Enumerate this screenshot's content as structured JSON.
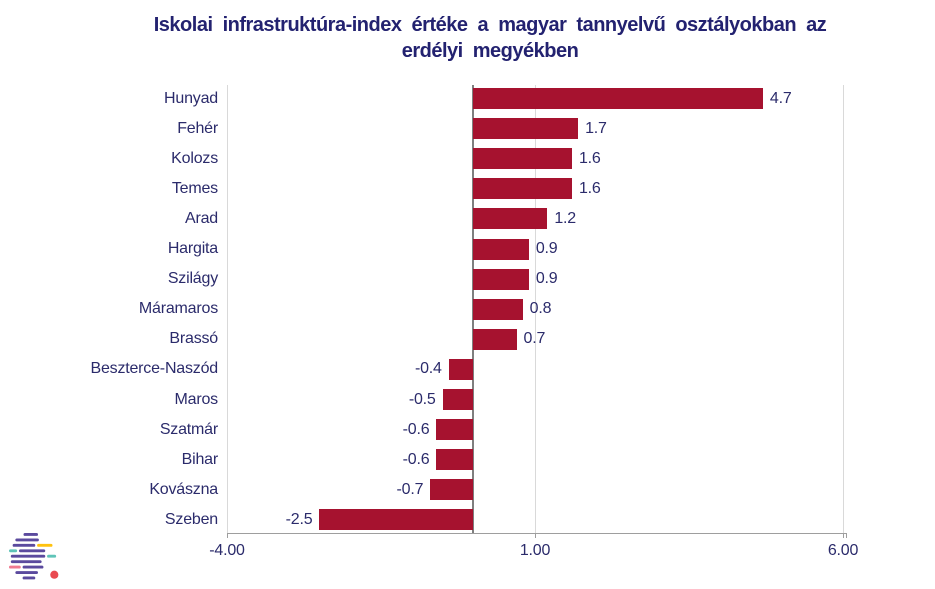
{
  "colors": {
    "bar": "#A6122F",
    "text": "#2B2B6B",
    "title": "#232270",
    "grid": "#D9D9D9",
    "zero": "#7F7F7F",
    "axis": "#9E9E9E",
    "logoPurple": "#5B4A9E",
    "logoYellow": "#FFC20E",
    "logoTeal": "#5FC4B8",
    "logoPink": "#F07A90",
    "logoRed": "#E94A50"
  },
  "chart_data": {
    "type": "bar",
    "orientation": "horizontal",
    "title": "Iskolai infrastruktúra-index értéke a magyar tannyelvű osztályokban az erdélyi megyékben",
    "title_lines": [
      "Iskolai infrastruktúra-index értéke a magyar tannyelvű osztályokban az",
      "erdélyi megyékben"
    ],
    "categories": [
      "Hunyad",
      "Fehér",
      "Kolozs",
      "Temes",
      "Arad",
      "Hargita",
      "Szilágy",
      "Máramaros",
      "Brassó",
      "Beszterce-Naszód",
      "Maros",
      "Szatmár",
      "Bihar",
      "Kovászna",
      "Szeben"
    ],
    "values": [
      4.7,
      1.7,
      1.6,
      1.6,
      1.2,
      0.9,
      0.9,
      0.8,
      0.7,
      -0.4,
      -0.5,
      -0.6,
      -0.6,
      -0.7,
      -2.5
    ],
    "value_labels": [
      "4.7",
      "1.7",
      "1.6",
      "1.6",
      "1.2",
      "0.9",
      "0.9",
      "0.8",
      "0.7",
      "-0.4",
      "-0.5",
      "-0.6",
      "-0.6",
      "-0.7",
      "-2.5"
    ],
    "xlabel": "",
    "ylabel": "",
    "xlim": [
      -4,
      6
    ],
    "xticks": [
      -4,
      1,
      6
    ],
    "xtick_labels": [
      "-4.00",
      "1.00",
      "6.00"
    ],
    "grid": "vertical light gridlines at ticks, dark zero baseline",
    "legend": "none"
  },
  "logo": {
    "icon": "striped-globe-logo"
  }
}
